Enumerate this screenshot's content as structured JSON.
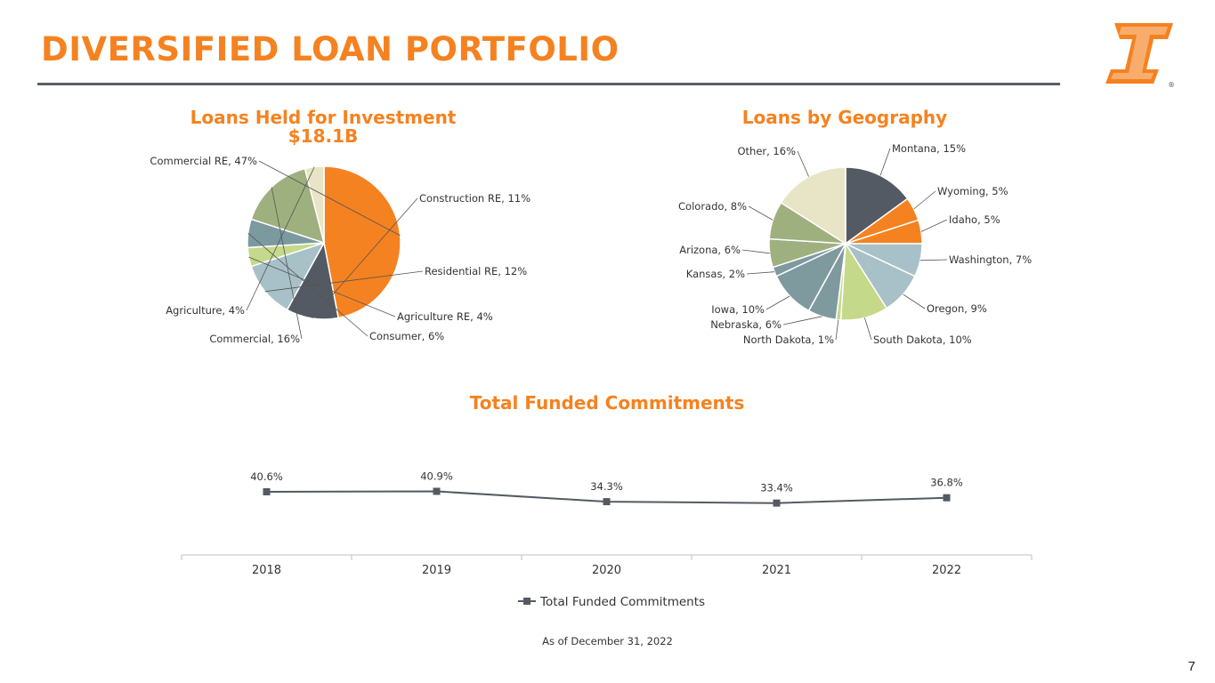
{
  "page": {
    "title": "DIVERSIFIED LOAN PORTFOLIO",
    "footnote": "As of December 31, 2022",
    "page_number": "7",
    "accent_color": "#f58220",
    "logo_icon": "first-interstate-logo-icon",
    "logo_registered": "®"
  },
  "chart_data": [
    {
      "type": "pie",
      "title": "Loans Held for Investment",
      "subtitle": "$18.1B",
      "slices": [
        {
          "label": "Commercial RE, 47%",
          "value": 47,
          "color": "#f58220"
        },
        {
          "label": "Construction RE, 11%",
          "value": 11,
          "color": "#545a63"
        },
        {
          "label": "Residential RE, 12%",
          "value": 12,
          "color": "#a8c1c8"
        },
        {
          "label": "Agriculture RE, 4%",
          "value": 4,
          "color": "#c5d98a"
        },
        {
          "label": "Consumer, 6%",
          "value": 6,
          "color": "#7b9aa0"
        },
        {
          "label": "Commercial, 16%",
          "value": 16,
          "color": "#9fb07f"
        },
        {
          "label": "Agriculture, 4%",
          "value": 4,
          "color": "#e8e4c6"
        }
      ]
    },
    {
      "type": "pie",
      "title": "Loans by Geography",
      "slices": [
        {
          "label": "Montana, 15%",
          "value": 15,
          "color": "#545a63"
        },
        {
          "label": "Wyoming, 5%",
          "value": 5,
          "color": "#f58220"
        },
        {
          "label": "Idaho, 5%",
          "value": 5,
          "color": "#f58220"
        },
        {
          "label": "Washington, 7%",
          "value": 7,
          "color": "#a8c1c8"
        },
        {
          "label": "Oregon, 9%",
          "value": 9,
          "color": "#a8c1c8"
        },
        {
          "label": "South Dakota, 10%",
          "value": 10,
          "color": "#c5d98a"
        },
        {
          "label": "North Dakota, 1%",
          "value": 1,
          "color": "#c5d98a"
        },
        {
          "label": "Nebraska, 6%",
          "value": 6,
          "color": "#7f9a9e"
        },
        {
          "label": "Iowa, 10%",
          "value": 10,
          "color": "#7f9a9e"
        },
        {
          "label": "Kansas, 2%",
          "value": 2,
          "color": "#7f9a9e"
        },
        {
          "label": "Arizona, 6%",
          "value": 6,
          "color": "#9fb07f"
        },
        {
          "label": "Colorado, 8%",
          "value": 8,
          "color": "#9fb07f"
        },
        {
          "label": "Other, 16%",
          "value": 16,
          "color": "#e8e4c6"
        }
      ]
    },
    {
      "type": "line",
      "title": "Total Funded Commitments",
      "categories": [
        "2018",
        "2019",
        "2020",
        "2021",
        "2022"
      ],
      "series": [
        {
          "name": "Total Funded Commitments",
          "values": [
            40.6,
            40.9,
            34.3,
            33.4,
            36.8
          ],
          "labels": [
            "40.6%",
            "40.9%",
            "34.3%",
            "33.4%",
            "36.8%"
          ],
          "color": "#545a63"
        }
      ],
      "legend": "bottom",
      "grid": false
    }
  ]
}
